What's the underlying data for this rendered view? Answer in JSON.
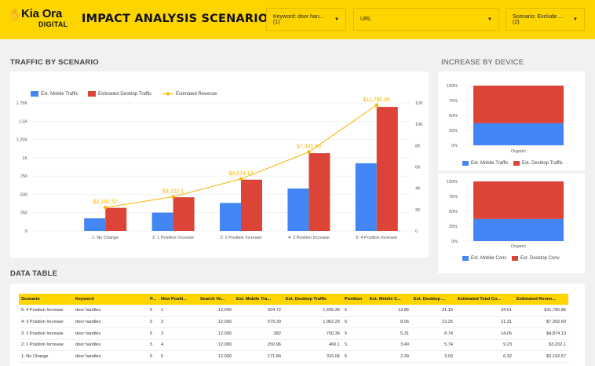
{
  "header": {
    "logo_name": "Kia Ora",
    "logo_sub": "DIGITAL",
    "title": "IMPACT ANALYSIS SCENARIOS",
    "filters": {
      "keyword": "Keyword: door han... (1)",
      "url": "URL",
      "scenario": "Scenario: Exclude ... (2)"
    }
  },
  "sections": {
    "traffic": "TRAFFIC BY SCENARIO",
    "device": "INCREASE BY DEVICE",
    "table": "DATA TABLE"
  },
  "colors": {
    "mobile": "#4285f4",
    "desktop": "#db4437",
    "revenue": "#f4b400",
    "accent": "#ffd500"
  },
  "chart_data": [
    {
      "type": "bar",
      "categories": [
        "1: No Change",
        "2: 1 Position Increase",
        "3: 2 Position Increase",
        "4: 3 Position Increase",
        "5: 4 Position Increase"
      ],
      "series": [
        {
          "name": "Est. Mobile Traffic",
          "values": [
            171.84,
            250.96,
            382,
            579.39,
            924.72
          ],
          "axis": "left"
        },
        {
          "name": "Estimated Desktop Traffic",
          "values": [
            315.06,
            460.1,
            700.36,
            1062.25,
            1695.36
          ],
          "axis": "left"
        },
        {
          "name": "Estimated Revenue",
          "type": "line",
          "values": [
            2192.57,
            3202.1,
            4874.13,
            7392.69,
            11790.86
          ],
          "axis": "right",
          "labels": [
            "$2,192.57",
            "$3,202.1",
            "$4,874.13",
            "$7,392.69",
            "$11,790.86"
          ]
        }
      ],
      "left_ticks": [
        "0",
        "250",
        "500",
        "750",
        "1K",
        "1.25K",
        "1.5K",
        "1.75K"
      ],
      "right_ticks": [
        "0",
        "2K",
        "4K",
        "6K",
        "8K",
        "10K",
        "12K"
      ],
      "ylim_left": [
        0,
        1750
      ],
      "ylim_right": [
        0,
        12000
      ],
      "legend_position": "top-left"
    },
    {
      "type": "bar",
      "stacked": "percent",
      "categories": [
        "Organic"
      ],
      "series": [
        {
          "name": "Est. Mobile Traffic",
          "values": [
            37
          ]
        },
        {
          "name": "Est. Desktop Traffic",
          "values": [
            63
          ]
        }
      ],
      "y_ticks": [
        "0%",
        "25%",
        "50%",
        "75%",
        "100%"
      ],
      "legend": [
        "Est. Mobile Traffic",
        "Est. Desktop Traffic"
      ],
      "legend_position": "bottom"
    },
    {
      "type": "bar",
      "stacked": "percent",
      "categories": [
        "Organic"
      ],
      "series": [
        {
          "name": "Est. Mobile Conv",
          "values": [
            37
          ]
        },
        {
          "name": "Est. Desktop Conv",
          "values": [
            63
          ]
        }
      ],
      "y_ticks": [
        "0%",
        "25%",
        "50%",
        "75%",
        "100%"
      ],
      "legend": [
        "Est. Mobile Conv",
        "Est. Desktop Conv"
      ],
      "legend_position": "bottom"
    }
  ],
  "table": {
    "headers": [
      "Scenario",
      "Keyword",
      "P...",
      "New Positi...",
      "Search Vo...",
      "Est. Mobile Tra...",
      "Est. Desktop Traffic",
      "Position",
      "Est. Mobile C...",
      "Est. Desktop ...",
      "Estimated Total Co...",
      "Estimated Reven..."
    ],
    "rows": [
      [
        "5: 4 Position Increase",
        "door handles",
        "5",
        "1",
        "12,000",
        "924.72",
        "1,695.36",
        "5",
        "12.86",
        "21.15",
        "34.01",
        "$11,790.86"
      ],
      [
        "4: 3 Position Increase",
        "door handles",
        "5",
        "2",
        "12,000",
        "579.39",
        "1,062.25",
        "5",
        "8.06",
        "13.25",
        "21.31",
        "$7,392.69"
      ],
      [
        "3: 2 Position Increase",
        "door handles",
        "5",
        "3",
        "12,000",
        "382",
        "700.36",
        "5",
        "5.31",
        "8.74",
        "14.05",
        "$4,874.13"
      ],
      [
        "2: 1 Position Increase",
        "door handles",
        "5",
        "4",
        "12,000",
        "250.96",
        "460.1",
        "5",
        "3.49",
        "5.74",
        "9.23",
        "$3,202.1"
      ],
      [
        "1: No Change",
        "door handles",
        "5",
        "5",
        "12,000",
        "171.84",
        "315.06",
        "5",
        "2.39",
        "3.93",
        "6.32",
        "$2,192.57"
      ]
    ]
  }
}
